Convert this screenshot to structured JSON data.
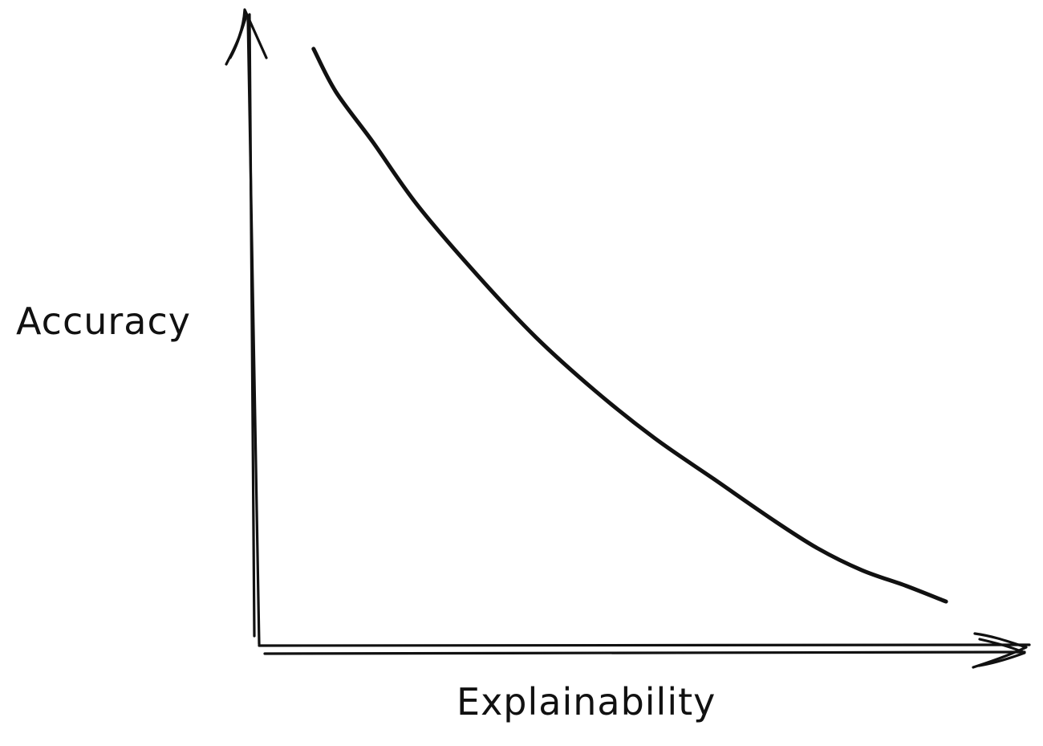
{
  "chart_data": {
    "type": "line",
    "title": "",
    "xlabel": "Explainability",
    "ylabel": "Accuracy",
    "grid": false,
    "legend": "none",
    "xlim": [
      0,
      1
    ],
    "ylim": [
      0,
      1
    ],
    "series": [
      {
        "color": "#111111",
        "points": [
          {
            "x": 0.08,
            "y": 0.948
          },
          {
            "x": 0.11,
            "y": 0.88
          },
          {
            "x": 0.16,
            "y": 0.8
          },
          {
            "x": 0.22,
            "y": 0.7
          },
          {
            "x": 0.3,
            "y": 0.59
          },
          {
            "x": 0.38,
            "y": 0.49
          },
          {
            "x": 0.46,
            "y": 0.405
          },
          {
            "x": 0.54,
            "y": 0.33
          },
          {
            "x": 0.62,
            "y": 0.265
          },
          {
            "x": 0.7,
            "y": 0.2
          },
          {
            "x": 0.76,
            "y": 0.155
          },
          {
            "x": 0.82,
            "y": 0.12
          },
          {
            "x": 0.88,
            "y": 0.095
          },
          {
            "x": 0.934,
            "y": 0.07
          }
        ]
      }
    ]
  }
}
